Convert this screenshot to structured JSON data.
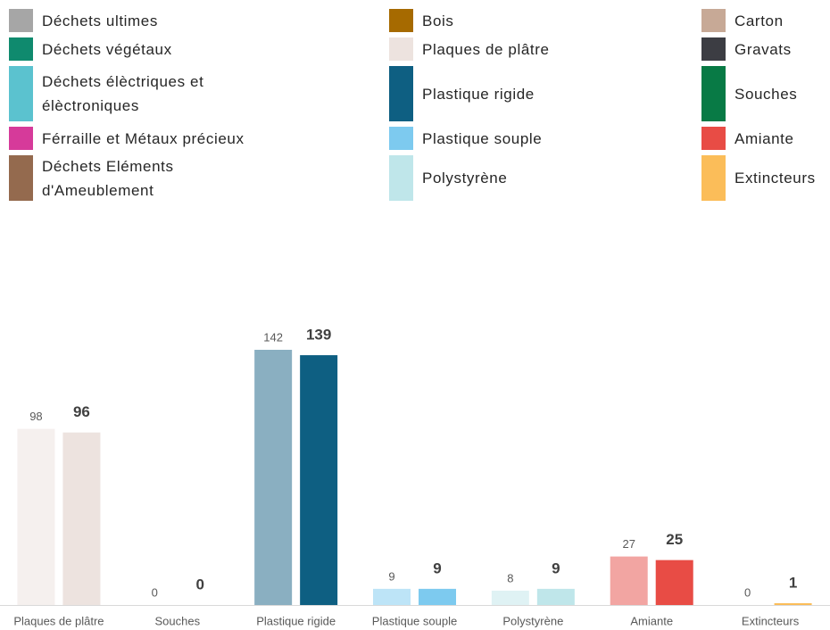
{
  "chart_data": {
    "type": "bar",
    "legend": [
      {
        "name": "Déchets ultimes",
        "color": "#a6a6a6"
      },
      {
        "name": "Déchets végétaux",
        "color": "#0f8a6e"
      },
      {
        "name": "Déchets élèctriques et élèctroniques",
        "color": "#5bc2cf"
      },
      {
        "name": "Férraille et Métaux précieux",
        "color": "#d63a9a"
      },
      {
        "name": "Déchets Eléments d'Ameublement",
        "color": "#946a4e"
      },
      {
        "name": "Bois",
        "color": "#a66a00"
      },
      {
        "name": "Plaques de plâtre",
        "color": "#ede3df"
      },
      {
        "name": "Plastique rigide",
        "color": "#0e5f82"
      },
      {
        "name": "Plastique souple",
        "color": "#7dcaef"
      },
      {
        "name": "Polystyrène",
        "color": "#bfe6ea"
      },
      {
        "name": "Carton",
        "color": "#c7a996"
      },
      {
        "name": "Gravats",
        "color": "#3c3d43"
      },
      {
        "name": "Souches",
        "color": "#087a45"
      },
      {
        "name": "Amiante",
        "color": "#e84c45"
      },
      {
        "name": "Extincteurs",
        "color": "#fbbd59"
      }
    ],
    "categories": [
      "Plaques de plâtre",
      "Souches",
      "Plastique rigide",
      "Plastique souple",
      "Polystyrène",
      "Amiante",
      "Extincteurs"
    ],
    "series": [
      {
        "values": [
          98,
          0,
          142,
          9,
          8,
          27,
          0
        ],
        "colors": [
          "#f5f0ee",
          "#9fcfb3",
          "#8aafc1",
          "#bde4f7",
          "#dff2f4",
          "#f2a5a2",
          "#fddeac"
        ]
      },
      {
        "values": [
          96,
          0,
          139,
          9,
          9,
          25,
          1
        ],
        "colors": [
          "#ede3df",
          "#087a45",
          "#0e5f82",
          "#7dcaef",
          "#bfe6ea",
          "#e84c45",
          "#fbbd59"
        ]
      }
    ]
  }
}
